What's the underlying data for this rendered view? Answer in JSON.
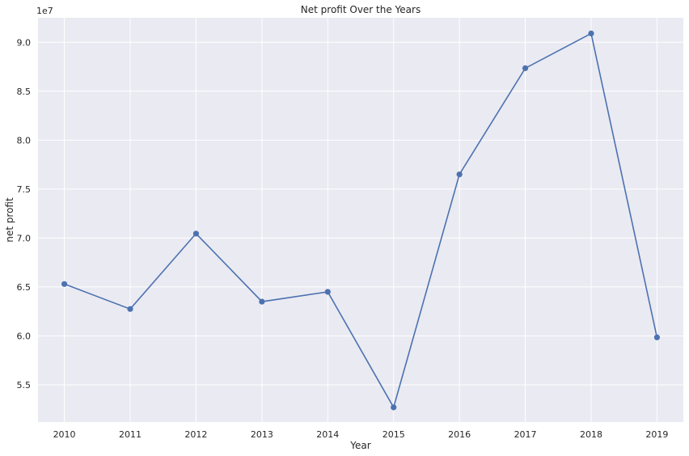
{
  "chart_data": {
    "type": "line",
    "title": "Net profit Over the Years",
    "xlabel": "Year",
    "ylabel": "net profit",
    "y_offset_label": "1e7",
    "x": [
      "2010",
      "2011",
      "2012",
      "2013",
      "2014",
      "2015",
      "2016",
      "2017",
      "2018",
      "2019"
    ],
    "series": [
      {
        "values": [
          65300000,
          62750000,
          70450000,
          63500000,
          64500000,
          52700000,
          76500000,
          87350000,
          90900000,
          59850000
        ]
      }
    ],
    "ylim": [
      51200000,
      92500000
    ],
    "yticks": [
      55000000,
      60000000,
      65000000,
      70000000,
      75000000,
      80000000,
      85000000,
      90000000
    ],
    "ytick_labels": [
      "5.5",
      "6.0",
      "6.5",
      "7.0",
      "7.5",
      "8.0",
      "8.5",
      "9.0"
    ],
    "grid": true,
    "colors": {
      "background": "#eaeaf2",
      "grid": "#ffffff",
      "line": "#4c72b0",
      "text": "#262626"
    },
    "marker": "circle"
  }
}
